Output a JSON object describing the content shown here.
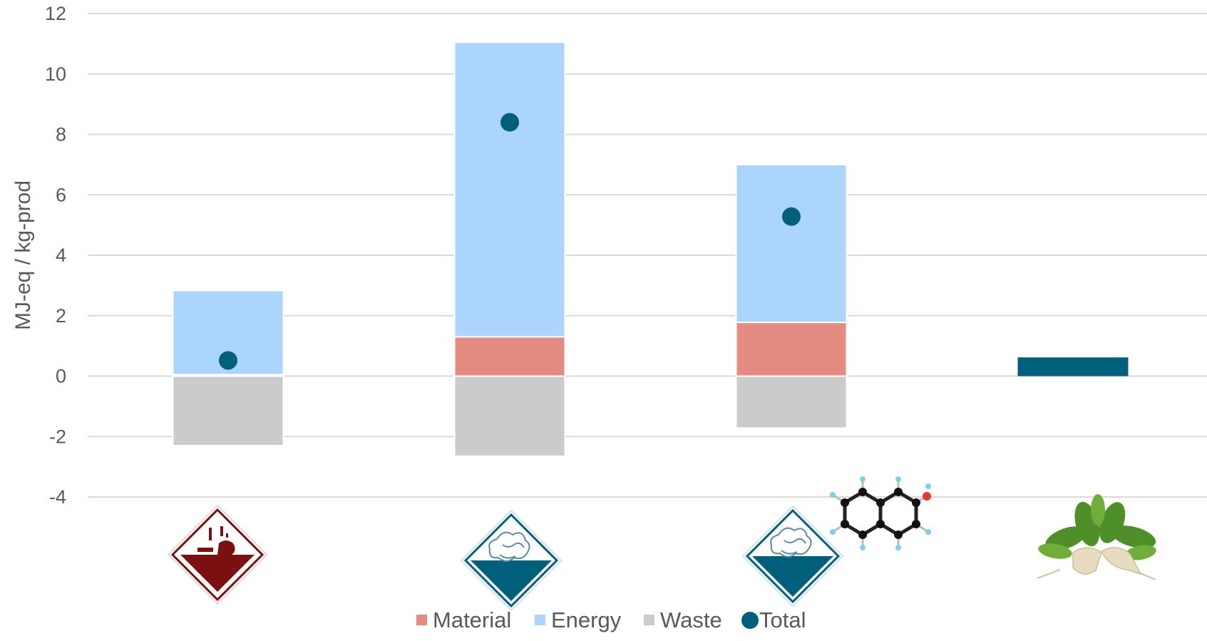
{
  "chart_data": {
    "type": "bar",
    "stacked": true,
    "ylabel": "MJ-eq / kg-prod",
    "ylim": [
      -4,
      12
    ],
    "yticks": [
      12,
      10,
      8,
      6,
      4,
      2,
      0,
      -2,
      -4
    ],
    "grid": true,
    "legend_position": "bottom",
    "categories": [
      "corrosive-hazard-icon",
      "biohazard-protein-icon",
      "biohazard-protein-molecule-icon",
      "sugar-beet-icon"
    ],
    "series": [
      {
        "name": "Material",
        "color": "#E58C82",
        "values": [
          0.05,
          1.3,
          1.78,
          0
        ]
      },
      {
        "name": "Energy",
        "color": "#ABD5FD",
        "values": [
          2.78,
          9.75,
          5.22,
          0
        ]
      },
      {
        "name": "Waste",
        "color": "#CBCBCB",
        "values": [
          -2.3,
          -2.65,
          -1.72,
          0
        ]
      },
      {
        "name": "Total",
        "color": "#005F7A",
        "type": "marker",
        "values": [
          0.52,
          8.4,
          5.28,
          0.62
        ]
      }
    ],
    "legend": [
      "Material",
      "Energy",
      "Waste",
      "Total"
    ]
  }
}
